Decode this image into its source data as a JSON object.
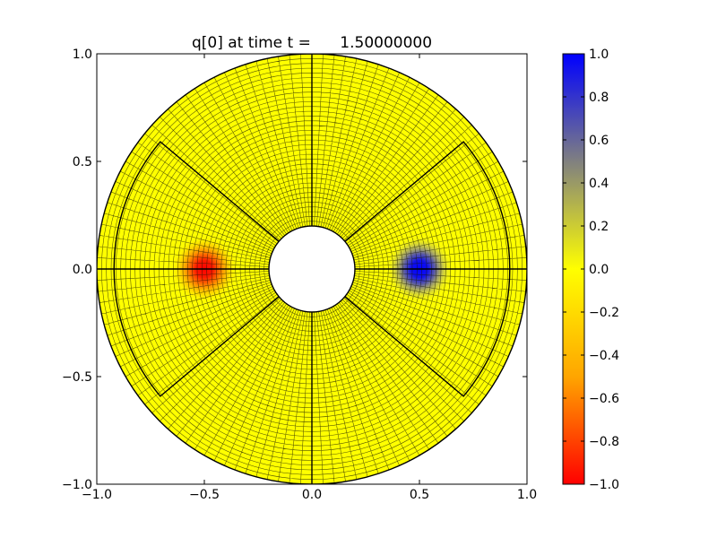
{
  "chart_data": {
    "type": "heatmap",
    "title": "q[0] at time t =      1.50000000",
    "xlabel": "",
    "ylabel": "",
    "xlim": [
      -1.0,
      1.0
    ],
    "ylim": [
      -1.0,
      1.0
    ],
    "x_ticks": [
      -1.0,
      -0.5,
      0.0,
      0.5,
      1.0
    ],
    "x_tick_labels": [
      "−1.0",
      "−0.5",
      "0.0",
      "0.5",
      "1.0"
    ],
    "y_ticks": [
      -1.0,
      -0.5,
      0.0,
      0.5,
      1.0
    ],
    "y_tick_labels": [
      "−1.0",
      "−0.5",
      "0.0",
      "0.5",
      "1.0"
    ],
    "grid": false,
    "domain": {
      "shape": "annulus",
      "inner_radius": 0.2,
      "outer_radius": 1.0,
      "mesh_radial_cells": 36,
      "mesh_angular_cells": 120
    },
    "blocks": {
      "inner_sector_outer_radius": 0.92,
      "inner_sector_edge_angles_deg": [
        40,
        140,
        220,
        320
      ],
      "radial_divider_angles_deg": [
        0,
        90,
        180,
        270
      ]
    },
    "features": [
      {
        "name": "positive pulse",
        "x": 0.5,
        "y": 0.0,
        "amplitude": 1.0,
        "width": 0.1
      },
      {
        "name": "negative pulse",
        "x": -0.5,
        "y": 0.0,
        "amplitude": -1.0,
        "width": 0.1
      }
    ],
    "colorbar": {
      "range": [
        -1.0,
        1.0
      ],
      "ticks": [
        1.0,
        0.8,
        0.6,
        0.4,
        0.2,
        0.0,
        -0.2,
        -0.4,
        -0.6,
        -0.8,
        -1.0
      ],
      "tick_labels": [
        "1.0",
        "0.8",
        "0.6",
        "0.4",
        "0.2",
        "0.0",
        "−0.2",
        "−0.4",
        "−0.6",
        "−0.8",
        "−1.0"
      ],
      "colors": {
        "min": "#ff0000",
        "low": "#ffa500",
        "mid": "#ffff00",
        "high": "#808080",
        "max": "#0000ff"
      }
    },
    "mesh_color": "#1a1a00",
    "block_line_color": "#000000"
  }
}
